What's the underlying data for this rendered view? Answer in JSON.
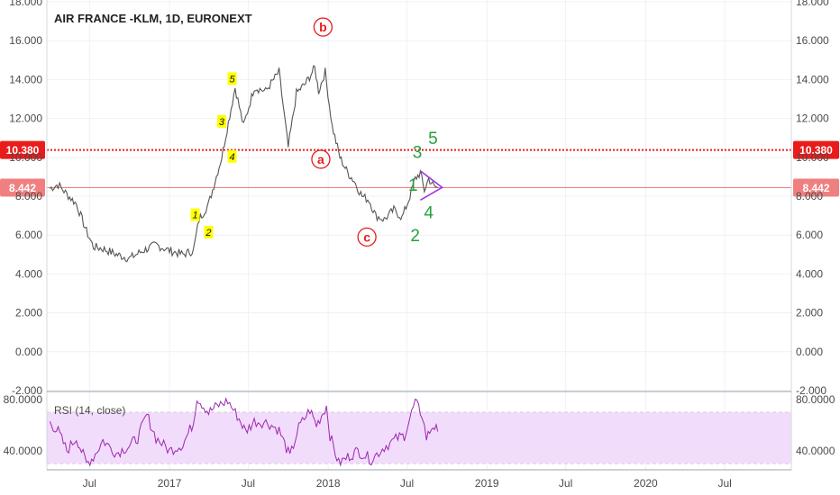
{
  "chart_data": {
    "type": "line",
    "title": "AIR FRANCE -KLM, 1D, EURONEXT",
    "price_axis": {
      "ticks": [
        "18.000",
        "16.000",
        "14.000",
        "12.000",
        "10.000",
        "8.000",
        "6.000",
        "4.000",
        "2.000",
        "0.000",
        "-2.000"
      ],
      "ylim": [
        -2,
        18
      ]
    },
    "x_ticks": [
      "Jul",
      "2017",
      "Jul",
      "2018",
      "Jul",
      "2019",
      "Jul",
      "2020",
      "Jul"
    ],
    "series": [
      {
        "values": [
          [
            "2016-04-01",
            8.4
          ],
          [
            "2016-04-20",
            8.6
          ],
          [
            "2016-05-10",
            8.1
          ],
          [
            "2016-06-01",
            7.6
          ],
          [
            "2016-06-24",
            6.2
          ],
          [
            "2016-07-10",
            5.4
          ],
          [
            "2016-08-01",
            5.3
          ],
          [
            "2016-09-01",
            5.0
          ],
          [
            "2016-10-01",
            4.8
          ],
          [
            "2016-11-01",
            5.2
          ],
          [
            "2016-12-01",
            5.5
          ],
          [
            "2017-01-01",
            5.2
          ],
          [
            "2017-02-01",
            5.0
          ],
          [
            "2017-02-25",
            5.2
          ],
          [
            "2017-03-10",
            6.8
          ],
          [
            "2017-04-01",
            7.6
          ],
          [
            "2017-05-01",
            10.0
          ],
          [
            "2017-06-01",
            13.6
          ],
          [
            "2017-06-20",
            11.6
          ],
          [
            "2017-07-15",
            13.6
          ],
          [
            "2017-08-10",
            13.4
          ],
          [
            "2017-09-10",
            14.4
          ],
          [
            "2017-10-01",
            10.5
          ],
          [
            "2017-10-20",
            13.3
          ],
          [
            "2017-11-10",
            13.8
          ],
          [
            "2017-12-01",
            14.6
          ],
          [
            "2017-12-10",
            13.4
          ],
          [
            "2017-12-25",
            14.4
          ],
          [
            "2018-01-10",
            11.6
          ],
          [
            "2018-01-28",
            10.0
          ],
          [
            "2018-02-15",
            9.2
          ],
          [
            "2018-03-01",
            8.8
          ],
          [
            "2018-03-20",
            8.0
          ],
          [
            "2018-04-05",
            7.8
          ],
          [
            "2018-04-20",
            7.0
          ],
          [
            "2018-05-10",
            6.8
          ],
          [
            "2018-06-01",
            7.3
          ],
          [
            "2018-06-20",
            6.9
          ],
          [
            "2018-07-05",
            7.8
          ],
          [
            "2018-07-20",
            8.9
          ],
          [
            "2018-08-01",
            9.2
          ],
          [
            "2018-08-10",
            8.3
          ],
          [
            "2018-08-20",
            8.9
          ],
          [
            "2018-09-01",
            8.5
          ],
          [
            "2018-09-10",
            8.442
          ]
        ]
      }
    ],
    "price_labels": [
      {
        "value": "10.380",
        "price": 10.38,
        "color": "#e81c1c",
        "style": "dotted"
      },
      {
        "value": "8.442",
        "price": 8.442,
        "color": "#f08080",
        "style": "solid"
      }
    ],
    "wave_labels": [
      {
        "text": "1",
        "date": "2017-03-01",
        "price": 7.0
      },
      {
        "text": "2",
        "date": "2017-04-01",
        "price": 6.1
      },
      {
        "text": "3",
        "date": "2017-05-01",
        "price": 11.8
      },
      {
        "text": "4",
        "date": "2017-05-25",
        "price": 10.0
      },
      {
        "text": "5",
        "date": "2017-05-25",
        "price": 14.0
      },
      {
        "text": "a",
        "date": "2017-12-15",
        "price": 9.9
      },
      {
        "text": "b",
        "date": "2017-12-20",
        "price": 16.7
      },
      {
        "text": "c",
        "date": "2018-03-31",
        "price": 5.9
      },
      {
        "text": "1",
        "date": "2018-07-15",
        "price": 8.6
      },
      {
        "text": "2",
        "date": "2018-07-20",
        "price": 6.0
      },
      {
        "text": "3",
        "date": "2018-07-25",
        "price": 10.3
      },
      {
        "text": "4",
        "date": "2018-08-20",
        "price": 7.2
      },
      {
        "text": "5",
        "date": "2018-08-30",
        "price": 11.0
      }
    ],
    "rsi": {
      "label": "RSI (14, close)",
      "ticks": [
        "80.0000",
        "40.0000"
      ],
      "ylim": [
        25,
        85
      ],
      "band": [
        30,
        70
      ],
      "values": [
        [
          "2016-04-01",
          62
        ],
        [
          "2016-04-20",
          55
        ],
        [
          "2016-05-10",
          40
        ],
        [
          "2016-06-01",
          50
        ],
        [
          "2016-06-24",
          30
        ],
        [
          "2016-07-10",
          35
        ],
        [
          "2016-08-01",
          48
        ],
        [
          "2016-09-01",
          38
        ],
        [
          "2016-10-01",
          44
        ],
        [
          "2016-10-20",
          50
        ],
        [
          "2016-11-10",
          68
        ],
        [
          "2016-12-01",
          50
        ],
        [
          "2017-01-01",
          40
        ],
        [
          "2017-02-01",
          45
        ],
        [
          "2017-02-25",
          62
        ],
        [
          "2017-03-05",
          82
        ],
        [
          "2017-04-01",
          70
        ],
        [
          "2017-04-20",
          75
        ],
        [
          "2017-05-15",
          79
        ],
        [
          "2017-06-10",
          65
        ],
        [
          "2017-06-25",
          55
        ],
        [
          "2017-07-15",
          63
        ],
        [
          "2017-08-15",
          62
        ],
        [
          "2017-09-10",
          56
        ],
        [
          "2017-10-05",
          35
        ],
        [
          "2017-10-25",
          58
        ],
        [
          "2017-11-20",
          72
        ],
        [
          "2017-12-05",
          60
        ],
        [
          "2017-12-28",
          75
        ],
        [
          "2018-01-05",
          52
        ],
        [
          "2018-01-25",
          30
        ],
        [
          "2018-02-15",
          35
        ],
        [
          "2018-03-10",
          40
        ],
        [
          "2018-04-10",
          33
        ],
        [
          "2018-05-10",
          43
        ],
        [
          "2018-06-10",
          50
        ],
        [
          "2018-06-25",
          52
        ],
        [
          "2018-07-20",
          78
        ],
        [
          "2018-08-05",
          68
        ],
        [
          "2018-08-15",
          50
        ],
        [
          "2018-08-30",
          60
        ],
        [
          "2018-09-10",
          55
        ]
      ]
    },
    "wedge": {
      "upper_start": [
        "2018-08-01",
        9.3
      ],
      "lower_start": [
        "2018-08-01",
        7.8
      ],
      "apex": [
        "2018-09-20",
        8.45
      ]
    }
  },
  "colors": {
    "price_line": "#555555",
    "grid": "#eef1f5",
    "wave_yellow_bg": "#ffff00",
    "wave_red": "#e81c1c",
    "wave_green": "#22a33a",
    "wedge": "#9b35e0",
    "rsi_line": "#9c27b0",
    "rsi_band": "#f2dcfb",
    "axis_text": "#4a4a4a"
  }
}
